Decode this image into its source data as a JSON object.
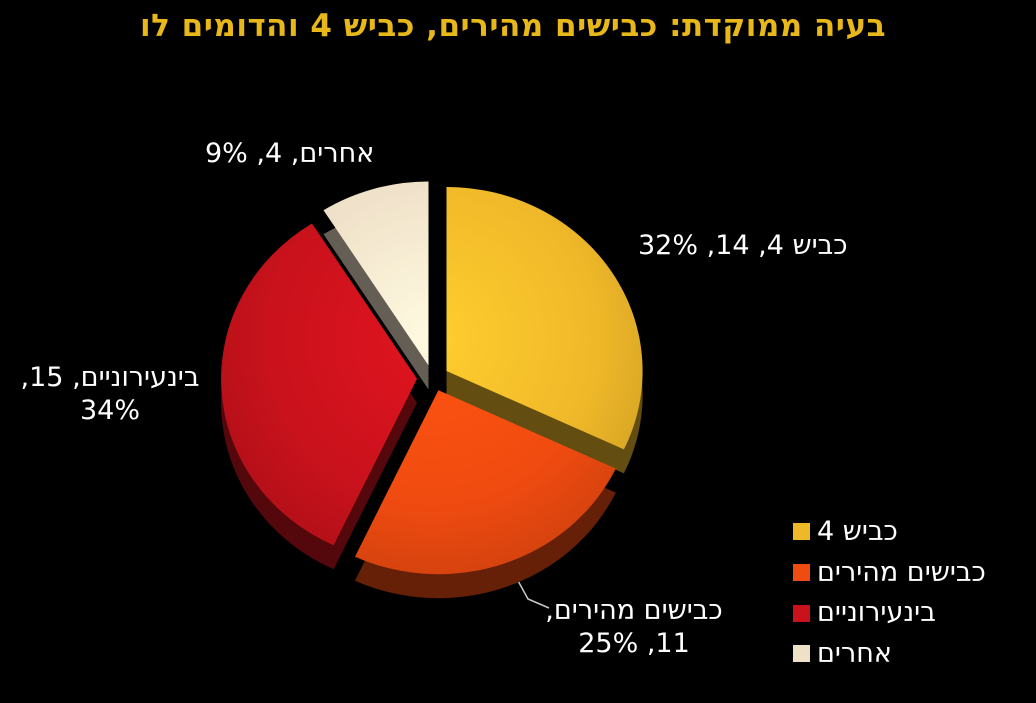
{
  "colors": {
    "background": "#000000",
    "title": "#E8B71A",
    "label_text": "#FFFFFF",
    "leader_line": "#C8C8C8"
  },
  "chart_data": {
    "type": "pie",
    "title": "בעיה ממוקדת: כבישים מהירים, כביש 4 והדומים לו",
    "effect_3d": true,
    "exploded": true,
    "legend_position": "bottom-right",
    "slices": [
      {
        "label": "כביש 4",
        "value": 14,
        "percent": 32,
        "color": "#EFB829"
      },
      {
        "label": "כבישים מהירים",
        "value": 11,
        "percent": 25,
        "color": "#F04B10"
      },
      {
        "label": "בינעירוניים",
        "value": 15,
        "percent": 34,
        "color": "#C9121C"
      },
      {
        "label": "אחרים",
        "value": 4,
        "percent": 9,
        "color": "#EFE0C8"
      }
    ],
    "callouts": [
      "כביש 4, 14, 32%",
      "כבישים מהירים, 11, 25%",
      "בינעירוניים, 15, 34%",
      "אחרים, 4, 9%"
    ]
  }
}
